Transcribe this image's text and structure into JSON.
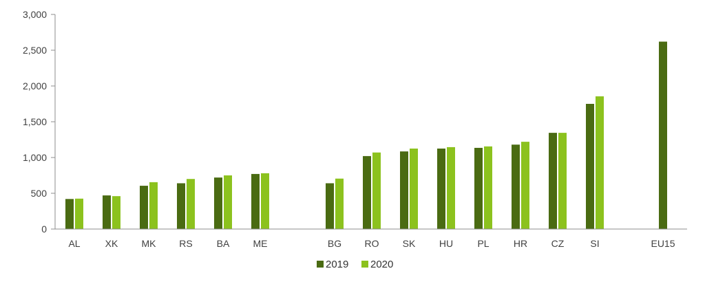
{
  "chart_data": {
    "type": "bar",
    "categories": [
      "AL",
      "XK",
      "MK",
      "RS",
      "BA",
      "ME",
      "BG",
      "RO",
      "SK",
      "HU",
      "PL",
      "HR",
      "CZ",
      "SI",
      "EU15"
    ],
    "series": [
      {
        "name": "2019",
        "color": "#4a6b12",
        "values": [
          420,
          470,
          605,
          640,
          720,
          770,
          640,
          1020,
          1085,
          1125,
          1135,
          1180,
          1345,
          1750,
          2620
        ]
      },
      {
        "name": "2020",
        "color": "#8cc21e",
        "values": [
          425,
          460,
          655,
          700,
          750,
          780,
          705,
          1070,
          1125,
          1145,
          1155,
          1220,
          1345,
          1855,
          null
        ]
      }
    ],
    "ylim": [
      0,
      3000
    ],
    "yticks": [
      0,
      500,
      1000,
      1500,
      2000,
      2500,
      3000
    ],
    "ytick_labels": [
      "0",
      "500",
      "1,000",
      "1,500",
      "2,000",
      "2,500",
      "3,000"
    ],
    "xlabel": "",
    "ylabel": "",
    "title": "",
    "grid": false,
    "legend": "bottom-center"
  }
}
